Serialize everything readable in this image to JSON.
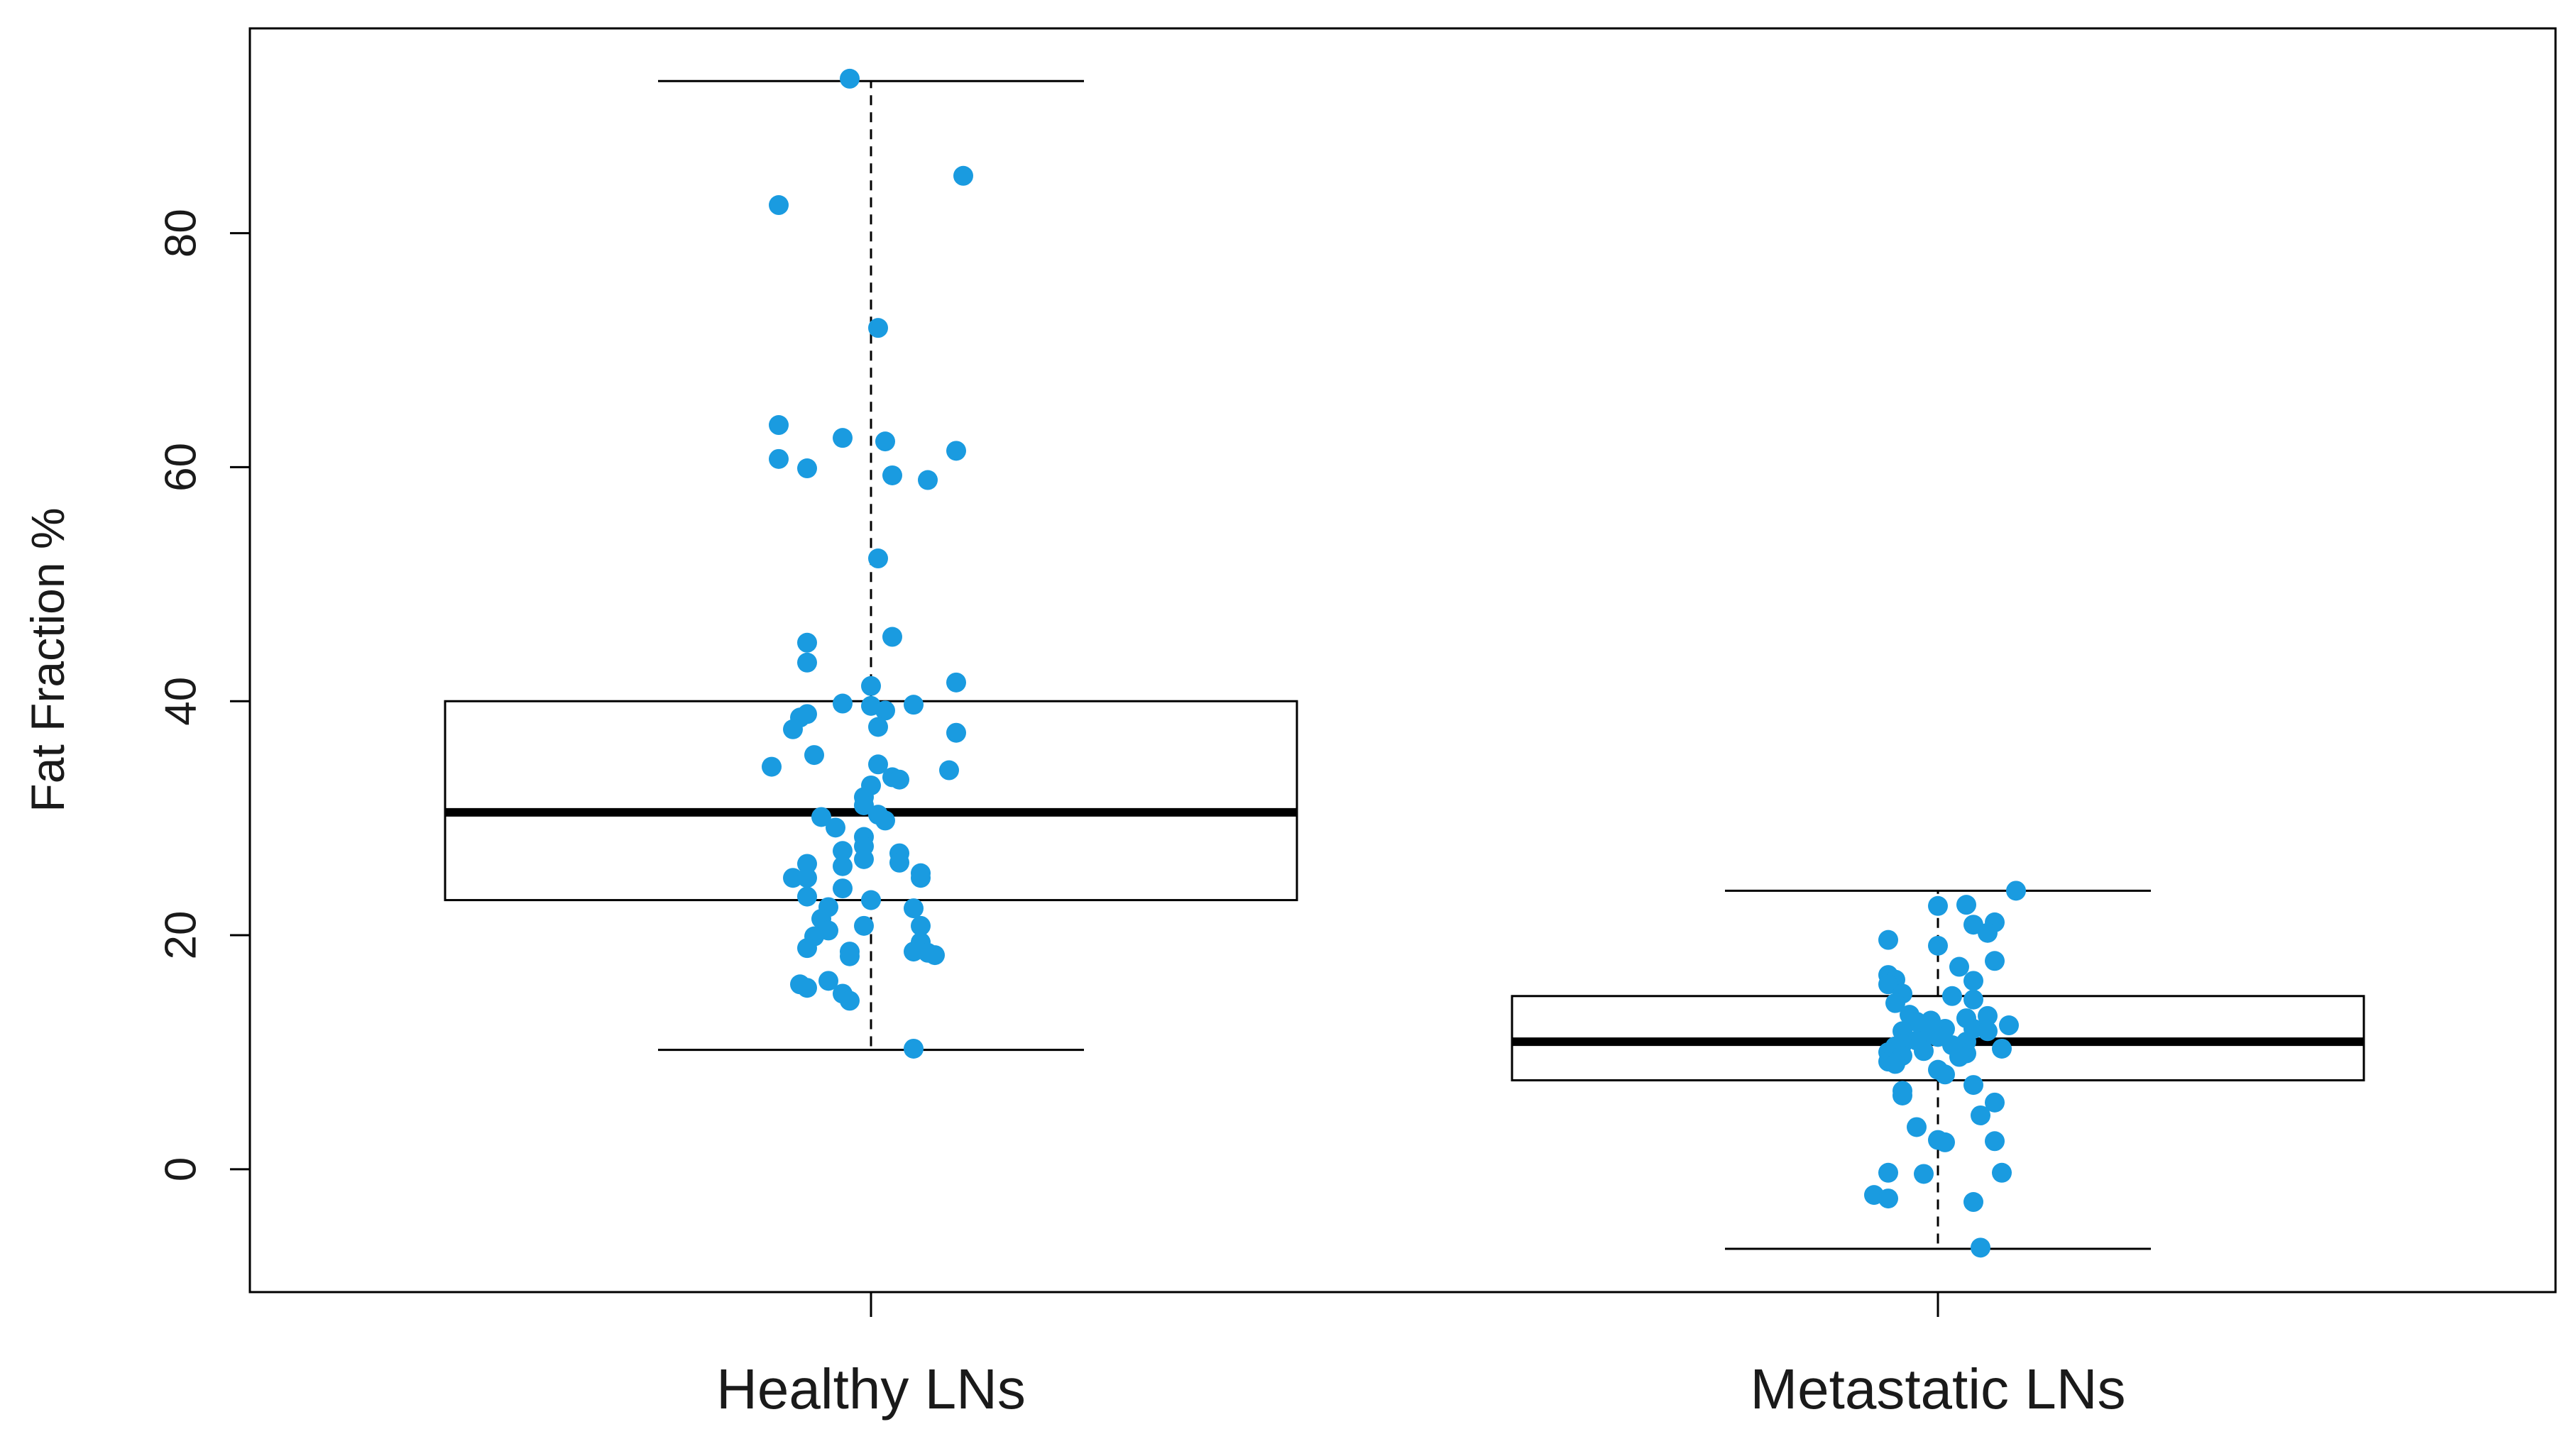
{
  "chart_data": {
    "type": "box",
    "ylabel": "Fat Fraction %",
    "xlabel": "",
    "ylim": [
      -10.5,
      97.5
    ],
    "yticks": [
      0,
      20,
      40,
      60,
      80
    ],
    "grid": false,
    "colors": {
      "points": "#1a9be0",
      "box": "#000000",
      "axes": "#000000",
      "background": "#ffffff"
    },
    "categories": [
      "Healthy LNs",
      "Metastatic LNs"
    ],
    "boxes": [
      {
        "name": "Healthy LNs",
        "whisker_low": 10.2,
        "q1": 23.0,
        "median": 30.5,
        "q3": 40.0,
        "whisker_high": 93.0,
        "points": [
          {
            "x": -0.03,
            "y": 93.2
          },
          {
            "x": 0.13,
            "y": 84.9
          },
          {
            "x": -0.13,
            "y": 82.4
          },
          {
            "x": 0.01,
            "y": 71.9
          },
          {
            "x": -0.13,
            "y": 63.6
          },
          {
            "x": -0.04,
            "y": 62.5
          },
          {
            "x": 0.02,
            "y": 62.2
          },
          {
            "x": 0.12,
            "y": 61.4
          },
          {
            "x": -0.13,
            "y": 60.7
          },
          {
            "x": -0.09,
            "y": 59.9
          },
          {
            "x": 0.03,
            "y": 59.3
          },
          {
            "x": 0.08,
            "y": 58.9
          },
          {
            "x": 0.01,
            "y": 52.2
          },
          {
            "x": 0.03,
            "y": 45.5
          },
          {
            "x": -0.09,
            "y": 45.0
          },
          {
            "x": -0.09,
            "y": 43.3
          },
          {
            "x": 0.12,
            "y": 41.6
          },
          {
            "x": 0.0,
            "y": 41.3
          },
          {
            "x": -0.04,
            "y": 39.8
          },
          {
            "x": 0.0,
            "y": 39.6
          },
          {
            "x": 0.06,
            "y": 39.7
          },
          {
            "x": 0.02,
            "y": 39.2
          },
          {
            "x": -0.09,
            "y": 38.9
          },
          {
            "x": -0.1,
            "y": 38.6
          },
          {
            "x": 0.01,
            "y": 37.8
          },
          {
            "x": -0.11,
            "y": 37.6
          },
          {
            "x": 0.12,
            "y": 37.3
          },
          {
            "x": -0.08,
            "y": 35.4
          },
          {
            "x": 0.01,
            "y": 34.6
          },
          {
            "x": -0.14,
            "y": 34.4
          },
          {
            "x": 0.11,
            "y": 34.1
          },
          {
            "x": 0.03,
            "y": 33.5
          },
          {
            "x": 0.04,
            "y": 33.3
          },
          {
            "x": 0.0,
            "y": 32.8
          },
          {
            "x": -0.01,
            "y": 31.8
          },
          {
            "x": -0.01,
            "y": 31.1
          },
          {
            "x": 0.01,
            "y": 30.3
          },
          {
            "x": -0.07,
            "y": 30.1
          },
          {
            "x": 0.02,
            "y": 29.8
          },
          {
            "x": -0.05,
            "y": 29.2
          },
          {
            "x": -0.01,
            "y": 28.4
          },
          {
            "x": -0.01,
            "y": 27.6
          },
          {
            "x": -0.04,
            "y": 27.2
          },
          {
            "x": 0.04,
            "y": 27.0
          },
          {
            "x": -0.01,
            "y": 26.5
          },
          {
            "x": 0.04,
            "y": 26.2
          },
          {
            "x": -0.09,
            "y": 26.1
          },
          {
            "x": -0.04,
            "y": 25.9
          },
          {
            "x": 0.07,
            "y": 25.3
          },
          {
            "x": 0.07,
            "y": 24.9
          },
          {
            "x": -0.11,
            "y": 24.9
          },
          {
            "x": -0.09,
            "y": 24.9
          },
          {
            "x": -0.04,
            "y": 24.0
          },
          {
            "x": 0.0,
            "y": 23.0
          },
          {
            "x": -0.09,
            "y": 23.3
          },
          {
            "x": -0.06,
            "y": 22.4
          },
          {
            "x": 0.06,
            "y": 22.3
          },
          {
            "x": -0.07,
            "y": 21.4
          },
          {
            "x": 0.07,
            "y": 20.8
          },
          {
            "x": -0.01,
            "y": 20.8
          },
          {
            "x": -0.06,
            "y": 20.4
          },
          {
            "x": -0.08,
            "y": 19.9
          },
          {
            "x": -0.09,
            "y": 18.9
          },
          {
            "x": 0.07,
            "y": 19.4
          },
          {
            "x": -0.03,
            "y": 18.6
          },
          {
            "x": 0.06,
            "y": 18.6
          },
          {
            "x": 0.08,
            "y": 18.5
          },
          {
            "x": -0.03,
            "y": 18.2
          },
          {
            "x": 0.09,
            "y": 18.3
          },
          {
            "x": -0.06,
            "y": 16.1
          },
          {
            "x": -0.1,
            "y": 15.8
          },
          {
            "x": -0.09,
            "y": 15.5
          },
          {
            "x": -0.04,
            "y": 15.0
          },
          {
            "x": -0.03,
            "y": 14.4
          },
          {
            "x": 0.06,
            "y": 10.3
          }
        ]
      },
      {
        "name": "Metastatic LNs",
        "whisker_low": -6.8,
        "q1": 7.6,
        "median": 10.9,
        "q3": 14.8,
        "whisker_high": 23.8,
        "points": [
          {
            "x": 0.11,
            "y": 23.8
          },
          {
            "x": 0.0,
            "y": 22.5
          },
          {
            "x": 0.04,
            "y": 22.6
          },
          {
            "x": 0.08,
            "y": 21.1
          },
          {
            "x": 0.05,
            "y": 20.9
          },
          {
            "x": 0.07,
            "y": 20.2
          },
          {
            "x": -0.07,
            "y": 19.6
          },
          {
            "x": 0.0,
            "y": 19.1
          },
          {
            "x": 0.08,
            "y": 17.8
          },
          {
            "x": 0.03,
            "y": 17.3
          },
          {
            "x": -0.07,
            "y": 16.6
          },
          {
            "x": -0.06,
            "y": 16.2
          },
          {
            "x": 0.05,
            "y": 16.1
          },
          {
            "x": -0.07,
            "y": 15.8
          },
          {
            "x": -0.05,
            "y": 15.0
          },
          {
            "x": 0.02,
            "y": 14.8
          },
          {
            "x": 0.05,
            "y": 14.5
          },
          {
            "x": -0.06,
            "y": 14.2
          },
          {
            "x": -0.04,
            "y": 13.2
          },
          {
            "x": 0.07,
            "y": 13.1
          },
          {
            "x": 0.04,
            "y": 12.9
          },
          {
            "x": -0.01,
            "y": 12.7
          },
          {
            "x": -0.03,
            "y": 12.6
          },
          {
            "x": 0.1,
            "y": 12.3
          },
          {
            "x": 0.01,
            "y": 12.0
          },
          {
            "x": 0.05,
            "y": 12.0
          },
          {
            "x": -0.05,
            "y": 11.8
          },
          {
            "x": 0.07,
            "y": 11.8
          },
          {
            "x": 0.0,
            "y": 11.3
          },
          {
            "x": -0.02,
            "y": 11.3
          },
          {
            "x": -0.03,
            "y": 11.0
          },
          {
            "x": 0.04,
            "y": 10.9
          },
          {
            "x": -0.05,
            "y": 10.7
          },
          {
            "x": 0.02,
            "y": 10.6
          },
          {
            "x": -0.06,
            "y": 10.5
          },
          {
            "x": 0.09,
            "y": 10.3
          },
          {
            "x": -0.02,
            "y": 10.1
          },
          {
            "x": -0.07,
            "y": 10.0
          },
          {
            "x": 0.04,
            "y": 9.9
          },
          {
            "x": -0.05,
            "y": 9.7
          },
          {
            "x": 0.03,
            "y": 9.6
          },
          {
            "x": -0.07,
            "y": 9.2
          },
          {
            "x": -0.06,
            "y": 9.0
          },
          {
            "x": 0.0,
            "y": 8.5
          },
          {
            "x": 0.01,
            "y": 8.1
          },
          {
            "x": 0.05,
            "y": 7.2
          },
          {
            "x": -0.05,
            "y": 6.7
          },
          {
            "x": -0.05,
            "y": 6.3
          },
          {
            "x": 0.08,
            "y": 5.7
          },
          {
            "x": 0.06,
            "y": 4.6
          },
          {
            "x": -0.03,
            "y": 3.6
          },
          {
            "x": 0.08,
            "y": 2.4
          },
          {
            "x": 0.0,
            "y": 2.5
          },
          {
            "x": 0.01,
            "y": 2.3
          },
          {
            "x": -0.07,
            "y": -0.3
          },
          {
            "x": -0.02,
            "y": -0.4
          },
          {
            "x": 0.09,
            "y": -0.3
          },
          {
            "x": -0.09,
            "y": -2.2
          },
          {
            "x": -0.07,
            "y": -2.5
          },
          {
            "x": 0.05,
            "y": -2.8
          },
          {
            "x": 0.06,
            "y": -6.7
          }
        ]
      }
    ]
  }
}
